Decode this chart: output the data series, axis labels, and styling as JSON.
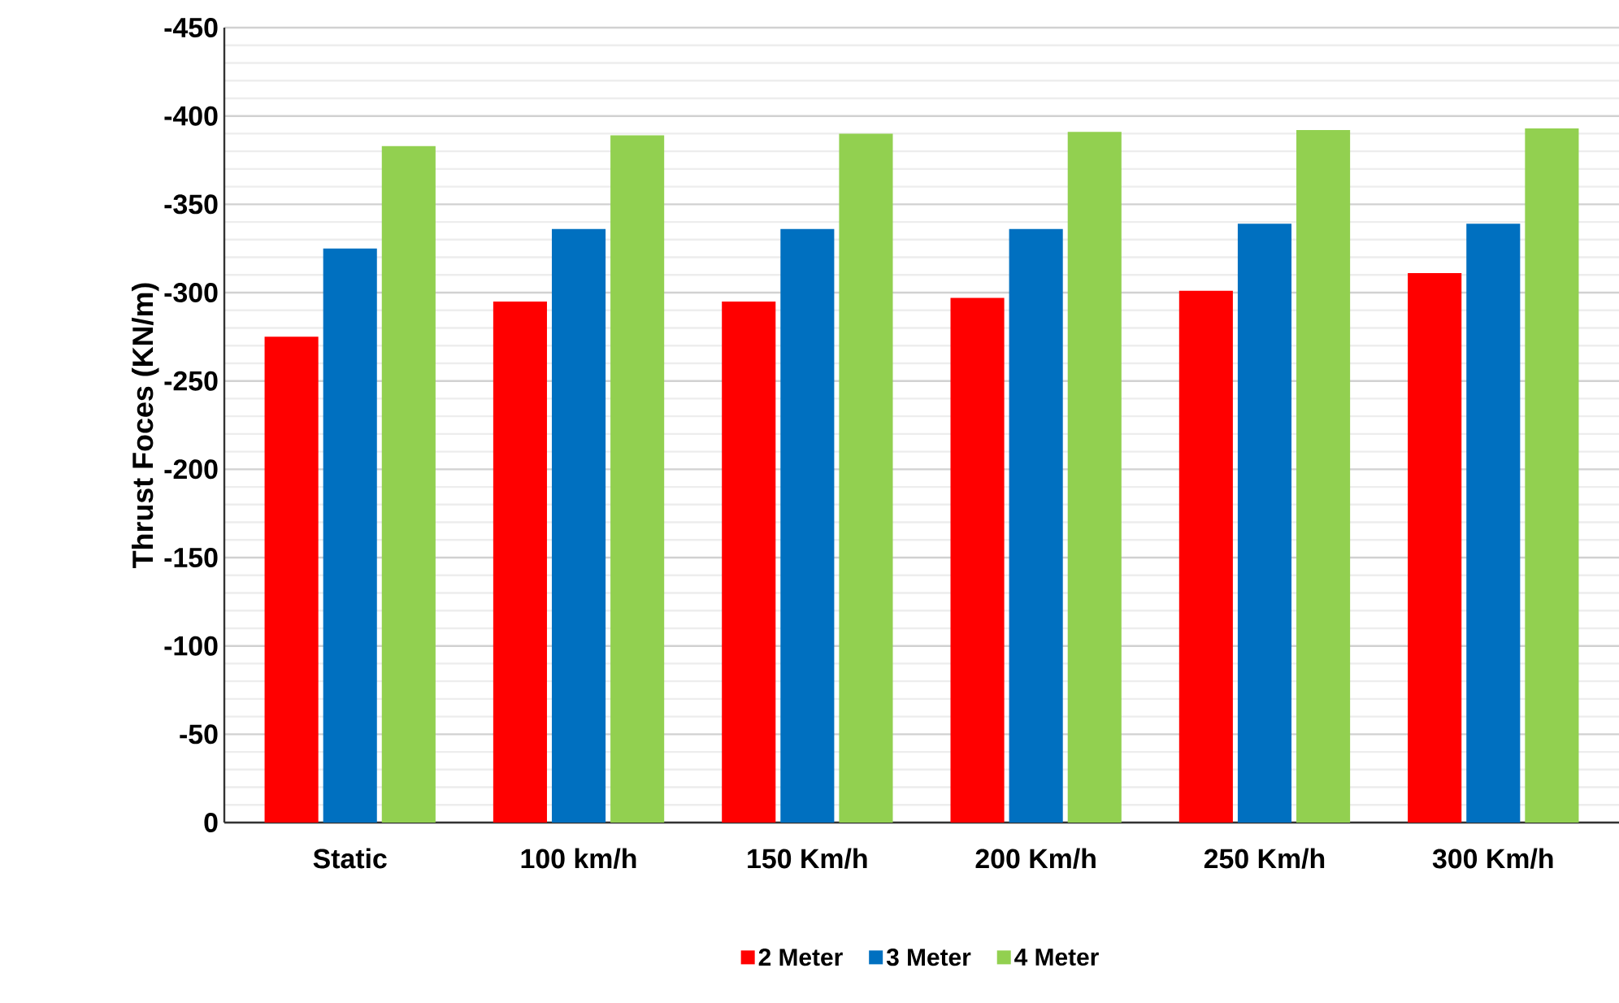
{
  "chart_data": {
    "type": "bar",
    "ylabel": "Thrust Foces (KN/m)",
    "categories": [
      "Static",
      "100 km/h",
      "150 Km/h",
      "200 Km/h",
      "250 Km/h",
      "300 Km/h"
    ],
    "series": [
      {
        "name": "2 Meter",
        "color": "#ff0000",
        "values": [
          -275,
          -295,
          -295,
          -297,
          -301,
          -311
        ]
      },
      {
        "name": "3 Meter",
        "color": "#0070c0",
        "values": [
          -325,
          -336,
          -336,
          -336,
          -339,
          -339
        ]
      },
      {
        "name": "4 Meter",
        "color": "#92d050",
        "values": [
          -383,
          -389,
          -390,
          -391,
          -392,
          -393
        ]
      }
    ],
    "ylim": [
      0,
      -450
    ],
    "yticks": [
      0,
      -50,
      -100,
      -150,
      -200,
      -250,
      -300,
      -350,
      -400,
      -450
    ],
    "grid": "y",
    "legend": "bottom"
  }
}
